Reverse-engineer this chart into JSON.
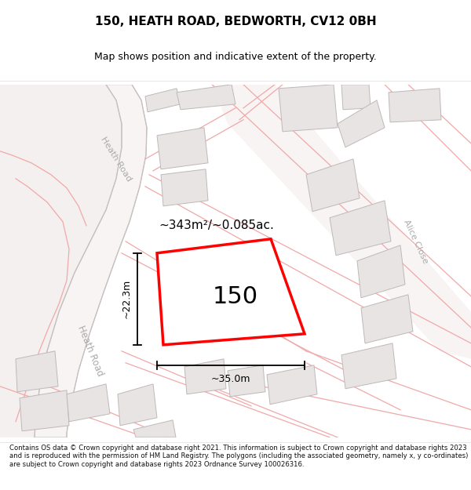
{
  "title": "150, HEATH ROAD, BEDWORTH, CV12 0BH",
  "subtitle": "Map shows position and indicative extent of the property.",
  "area_label": "~343m²/~0.085ac.",
  "property_number": "150",
  "dim_width": "~35.0m",
  "dim_height": "~22.3m",
  "road_label_1": "Heath Road",
  "road_label_2": "Heath Road",
  "road_label_alice": "Alice Close",
  "footer": "Contains OS data © Crown copyright and database right 2021. This information is subject to Crown copyright and database rights 2023 and is reproduced with the permission of HM Land Registry. The polygons (including the associated geometry, namely x, y co-ordinates) are subject to Crown copyright and database rights 2023 Ordnance Survey 100026316.",
  "title_color": "#000000",
  "red_color": "#ff0000",
  "property_fill": "#ffffff",
  "map_bg": "#ffffff",
  "road_line_color": "#f0a8a8",
  "road_boundary_color": "#c8c0c0",
  "building_fill": "#e8e4e4",
  "building_edge": "#c0b8b8",
  "road_area_fill": "#f8f0f0",
  "note_color": "#aaaaaa"
}
